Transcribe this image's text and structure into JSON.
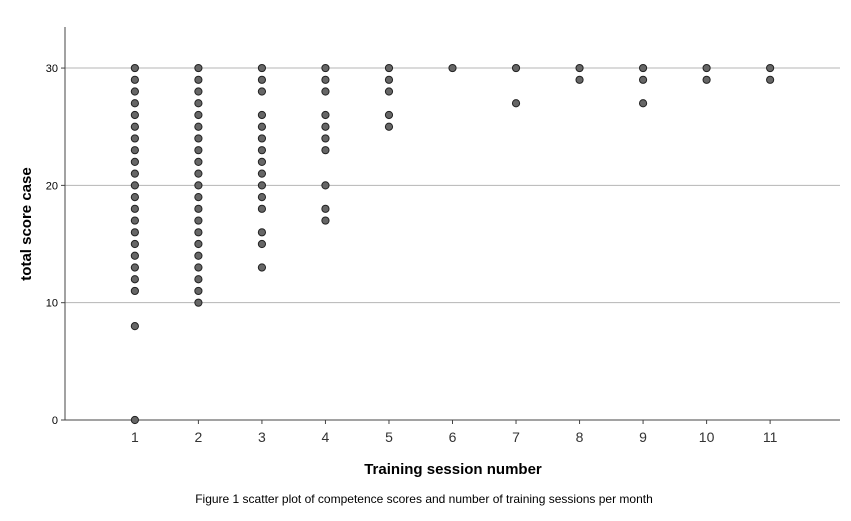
{
  "chart_data": {
    "type": "scatter",
    "xlabel": "Training session number",
    "ylabel": "total score case",
    "caption": "Figure 1 scatter plot of competence scores and number of training sessions per month",
    "x_ticks": [
      1,
      2,
      3,
      4,
      5,
      6,
      7,
      8,
      9,
      10,
      11
    ],
    "y_ticks": [
      0,
      10,
      20,
      30
    ],
    "xlim": [
      -0.1,
      12.1
    ],
    "ylim": [
      0,
      33.5
    ],
    "grid": "horizontal",
    "marker_color": "#666666",
    "marker_edge": "#222222",
    "points": [
      {
        "x": 1,
        "ys": [
          0,
          8,
          11,
          12,
          13,
          14,
          15,
          16,
          17,
          18,
          19,
          20,
          21,
          22,
          23,
          24,
          25,
          26,
          27,
          28,
          29,
          30
        ]
      },
      {
        "x": 2,
        "ys": [
          10,
          11,
          12,
          13,
          14,
          15,
          16,
          17,
          18,
          19,
          20,
          21,
          22,
          23,
          24,
          25,
          26,
          27,
          28,
          29,
          30
        ]
      },
      {
        "x": 3,
        "ys": [
          13,
          15,
          16,
          18,
          19,
          20,
          21,
          22,
          23,
          24,
          25,
          26,
          28,
          29,
          30
        ]
      },
      {
        "x": 4,
        "ys": [
          17,
          18,
          20,
          23,
          24,
          25,
          26,
          28,
          29,
          30
        ]
      },
      {
        "x": 5,
        "ys": [
          25,
          26,
          28,
          29,
          30
        ]
      },
      {
        "x": 6,
        "ys": [
          30
        ]
      },
      {
        "x": 7,
        "ys": [
          27,
          30
        ]
      },
      {
        "x": 8,
        "ys": [
          29,
          30
        ]
      },
      {
        "x": 9,
        "ys": [
          27,
          29,
          30
        ]
      },
      {
        "x": 10,
        "ys": [
          29,
          30
        ]
      },
      {
        "x": 11,
        "ys": [
          29,
          30
        ]
      }
    ]
  }
}
